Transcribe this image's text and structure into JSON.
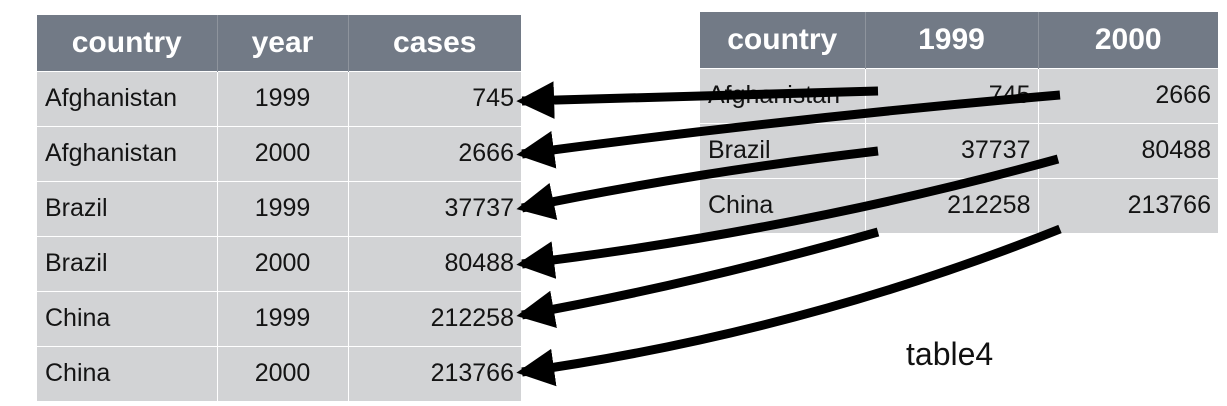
{
  "tidy_table": {
    "headers": [
      "country",
      "year",
      "cases"
    ],
    "rows": [
      [
        "Afghanistan",
        "1999",
        "745"
      ],
      [
        "Afghanistan",
        "2000",
        "2666"
      ],
      [
        "Brazil",
        "1999",
        "37737"
      ],
      [
        "Brazil",
        "2000",
        "80488"
      ],
      [
        "China",
        "1999",
        "212258"
      ],
      [
        "China",
        "2000",
        "213766"
      ]
    ]
  },
  "wide_table": {
    "headers": [
      "country",
      "1999",
      "2000"
    ],
    "rows": [
      [
        "Afghanistan",
        "745",
        "2666"
      ],
      [
        "Brazil",
        "37737",
        "80488"
      ],
      [
        "China",
        "212258",
        "213766"
      ]
    ]
  },
  "caption": "table4",
  "colors": {
    "header_bg": "#727a86",
    "cell_bg": "#d2d3d5",
    "arrow": "#000000"
  }
}
